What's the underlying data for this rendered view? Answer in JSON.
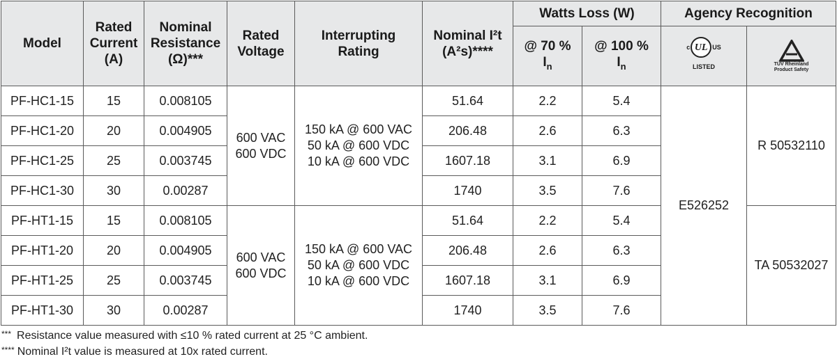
{
  "headers": {
    "model": "Model",
    "rated_current": [
      "Rated",
      "Current",
      "(A)"
    ],
    "nominal_resistance": [
      "Nominal",
      "Resistance",
      "(Ω)***"
    ],
    "rated_voltage": [
      "Rated",
      "Voltage"
    ],
    "interrupting_rating": [
      "Interrupting",
      "Rating"
    ],
    "nominal_i2t_line1": "Nominal I²t",
    "nominal_i2t_line2": "(A²s)****",
    "watts_loss": "Watts Loss (W)",
    "at70": "@ 70 %",
    "at100": "@ 100 %",
    "in_main": "I",
    "in_sub": "n",
    "agency": "Agency Recognition"
  },
  "logos": {
    "ul": {
      "c": "c",
      "mark": "UL",
      "us": "US",
      "listed": "LISTED",
      "icon": "ul-listed-icon"
    },
    "tuv": {
      "line1": "TÜV Rheinland",
      "line2": "Product Safety",
      "icon": "tuv-triangle-icon"
    }
  },
  "groups": [
    {
      "voltage": [
        "600 VAC",
        "600 VDC"
      ],
      "interrupting": [
        "150 kA @ 600 VAC",
        "50 kA @ 600 VDC",
        "10 kA @ 600 VDC"
      ],
      "tuv_cert": "R 50532110",
      "rows": [
        {
          "model": "PF-HC1-15",
          "current": "15",
          "resistance": "0.008105",
          "i2t": "51.64",
          "w70": "2.2",
          "w100": "5.4"
        },
        {
          "model": "PF-HC1-20",
          "current": "20",
          "resistance": "0.004905",
          "i2t": "206.48",
          "w70": "2.6",
          "w100": "6.3"
        },
        {
          "model": "PF-HC1-25",
          "current": "25",
          "resistance": "0.003745",
          "i2t": "1607.18",
          "w70": "3.1",
          "w100": "6.9"
        },
        {
          "model": "PF-HC1-30",
          "current": "30",
          "resistance": "0.00287",
          "i2t": "1740",
          "w70": "3.5",
          "w100": "7.6"
        }
      ]
    },
    {
      "voltage": [
        "600 VAC",
        "600 VDC"
      ],
      "interrupting": [
        "150 kA @ 600 VAC",
        "50 kA @ 600 VDC",
        "10 kA @ 600 VDC"
      ],
      "tuv_cert": "TA 50532027",
      "rows": [
        {
          "model": "PF-HT1-15",
          "current": "15",
          "resistance": "0.008105",
          "i2t": "51.64",
          "w70": "2.2",
          "w100": "5.4"
        },
        {
          "model": "PF-HT1-20",
          "current": "20",
          "resistance": "0.004905",
          "i2t": "206.48",
          "w70": "2.6",
          "w100": "6.3"
        },
        {
          "model": "PF-HT1-25",
          "current": "25",
          "resistance": "0.003745",
          "i2t": "1607.18",
          "w70": "3.1",
          "w100": "6.9"
        },
        {
          "model": "PF-HT1-30",
          "current": "30",
          "resistance": "0.00287",
          "i2t": "1740",
          "w70": "3.5",
          "w100": "7.6"
        }
      ]
    }
  ],
  "ul_file": "E526252",
  "notes": [
    {
      "mark": "***",
      "text": "Resistance value measured with ≤10 % rated current at 25 °C ambient."
    },
    {
      "mark": "****",
      "text": "Nominal I²t value is measured at 10x rated current."
    }
  ]
}
